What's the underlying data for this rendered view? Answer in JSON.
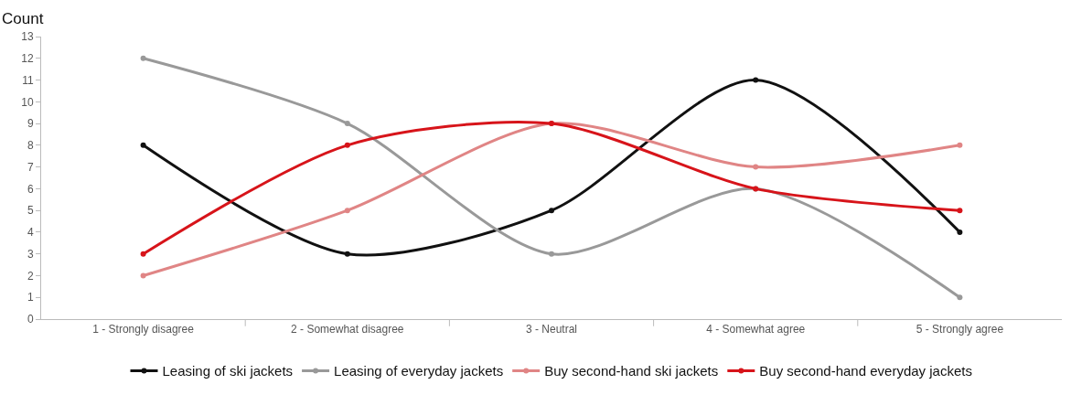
{
  "chart_data": {
    "type": "line",
    "ylabel": "Count",
    "categories": [
      "1 - Strongly disagree",
      "2 - Somewhat disagree",
      "3 - Neutral",
      "4 - Somewhat agree",
      "5 - Strongly agree"
    ],
    "series": [
      {
        "name": "Leasing of ski jackets",
        "color": "#111111",
        "values": [
          8,
          3,
          5,
          11,
          4
        ]
      },
      {
        "name": "Leasing of everyday jackets",
        "color": "#999999",
        "values": [
          12,
          9,
          3,
          6,
          1
        ]
      },
      {
        "name": "Buy second-hand ski jackets",
        "color": "#e08585",
        "values": [
          2,
          5,
          9,
          7,
          8
        ]
      },
      {
        "name": "Buy second-hand everyday jackets",
        "color": "#d7141a",
        "values": [
          3,
          8,
          9,
          6,
          5
        ]
      }
    ],
    "ylim": [
      0,
      13
    ],
    "yticks": [
      0,
      1,
      2,
      3,
      4,
      5,
      6,
      7,
      8,
      9,
      10,
      11,
      12,
      13
    ],
    "legend": "bottom",
    "marker": "circle",
    "line_style": "solid"
  }
}
